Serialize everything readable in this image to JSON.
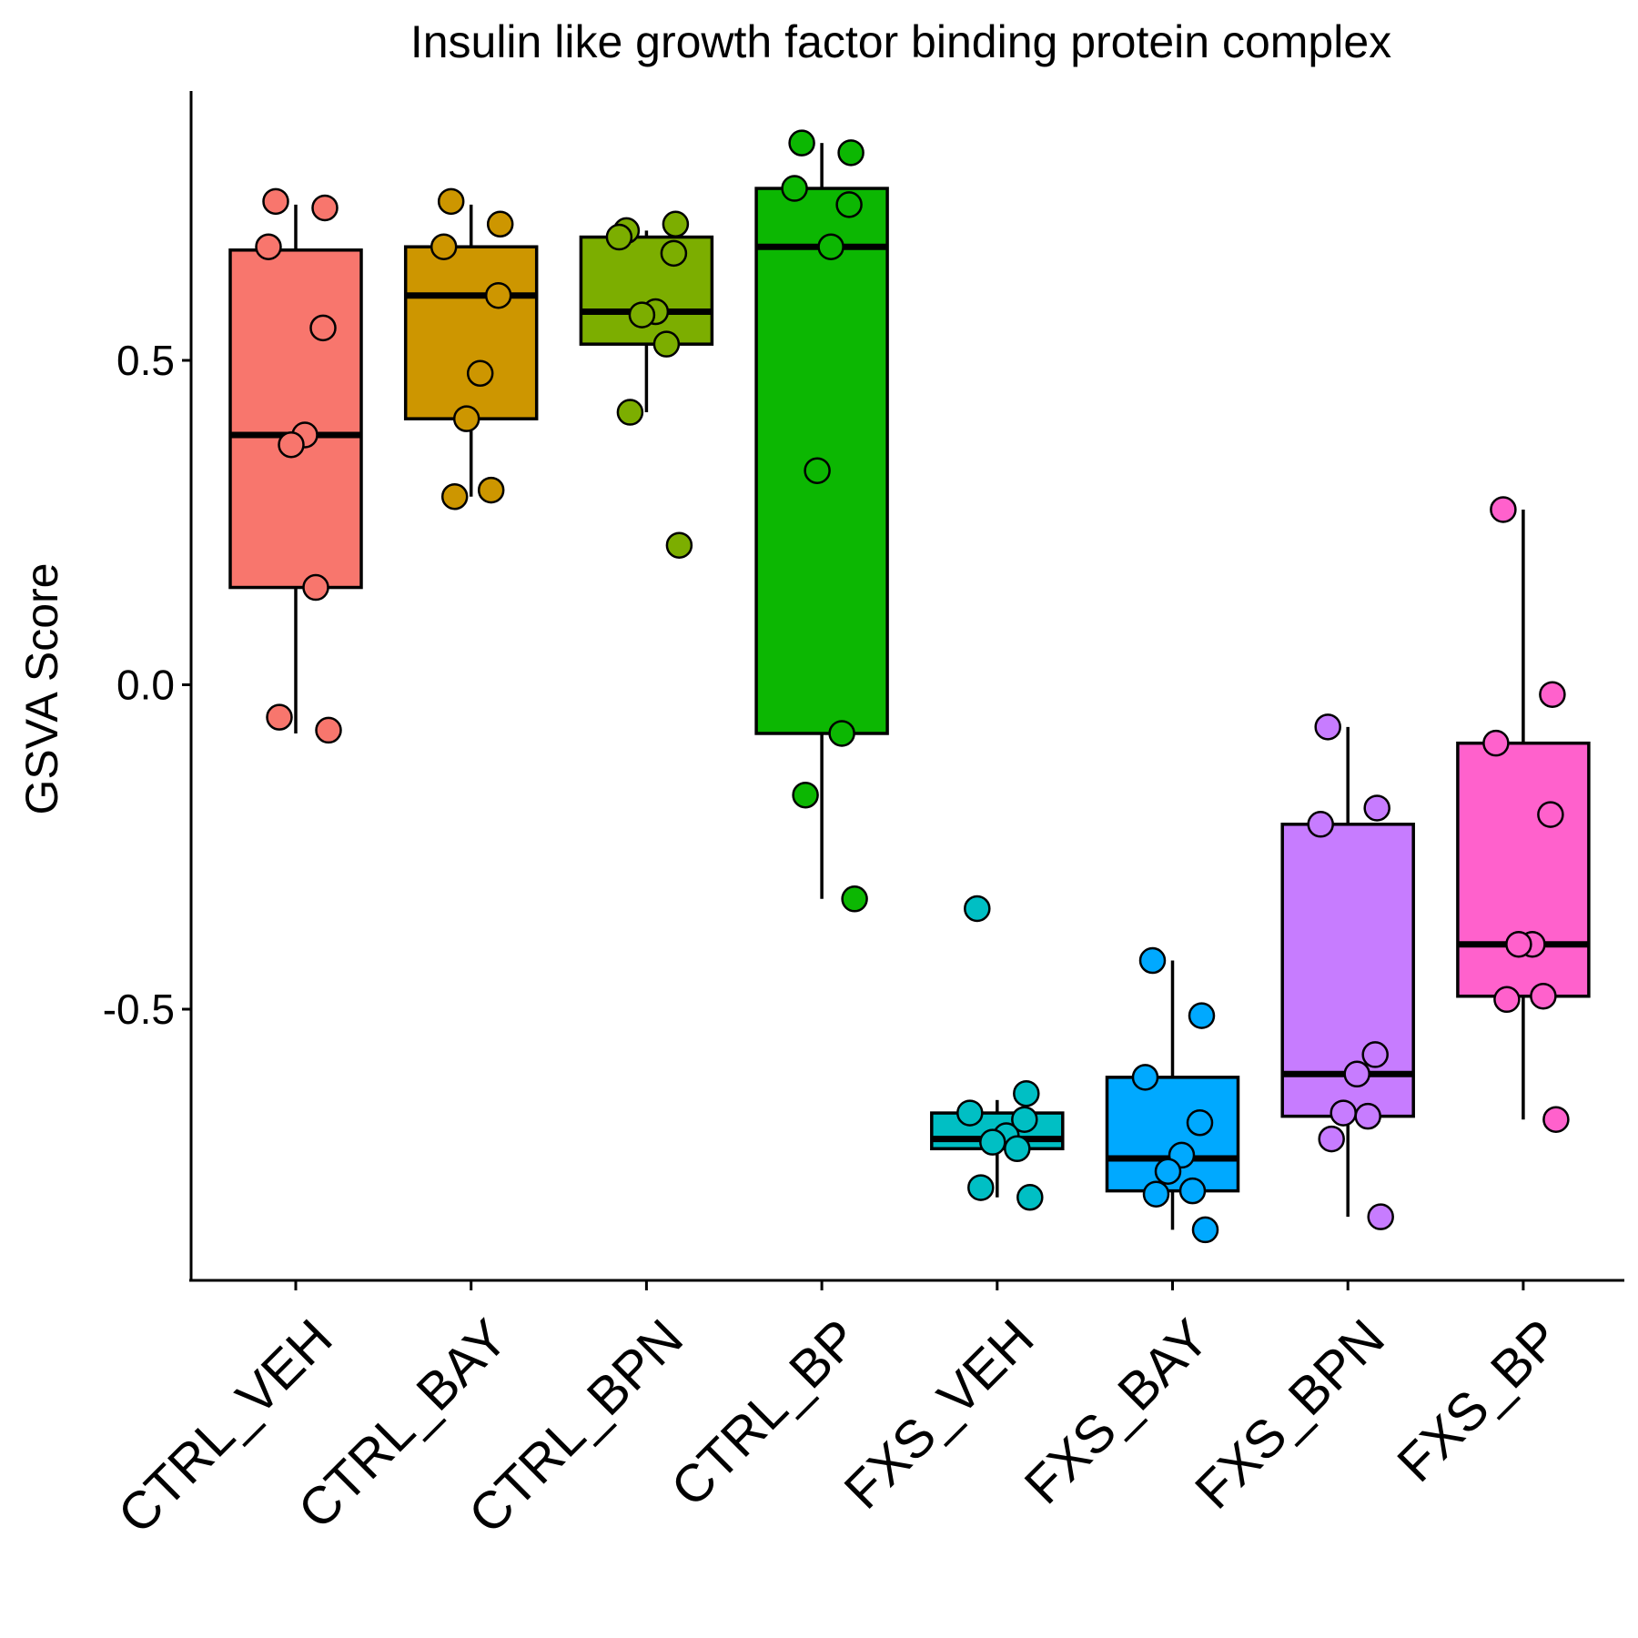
{
  "chart_data": {
    "type": "box",
    "title": "Insulin like growth factor binding protein complex",
    "xlabel": "",
    "ylabel": "GSVA Score",
    "ylim": [
      -0.9,
      0.92
    ],
    "yticks": [
      0.5,
      0.0,
      -0.5
    ],
    "ytick_labels": [
      "0.5",
      "0.0",
      "-0.5"
    ],
    "grid": false,
    "legend": "none",
    "groups": [
      {
        "name": "CTRL_VEH",
        "color": "#F8766D",
        "q1": 0.15,
        "median": 0.385,
        "q3": 0.67,
        "whisker_low": -0.075,
        "whisker_high": 0.74,
        "points": [
          0.745,
          0.735,
          0.675,
          0.55,
          0.385,
          0.37,
          0.15,
          -0.05,
          -0.07
        ]
      },
      {
        "name": "CTRL_BAY",
        "color": "#CD9600",
        "q1": 0.41,
        "median": 0.6,
        "q3": 0.675,
        "whisker_low": 0.29,
        "whisker_high": 0.74,
        "points": [
          0.745,
          0.71,
          0.675,
          0.6,
          0.48,
          0.41,
          0.3,
          0.29
        ]
      },
      {
        "name": "CTRL_BPN",
        "color": "#7CAE00",
        "q1": 0.525,
        "median": 0.575,
        "q3": 0.69,
        "whisker_low": 0.42,
        "whisker_high": 0.7,
        "points": [
          0.7,
          0.71,
          0.69,
          0.665,
          0.575,
          0.57,
          0.525,
          0.42,
          0.215
        ]
      },
      {
        "name": "CTRL_BP",
        "color": "#0CB702",
        "q1": -0.075,
        "median": 0.675,
        "q3": 0.765,
        "whisker_low": -0.33,
        "whisker_high": 0.835,
        "points": [
          0.835,
          0.82,
          0.765,
          0.74,
          0.675,
          0.33,
          -0.075,
          -0.17,
          -0.33
        ]
      },
      {
        "name": "FXS_VEH",
        "color": "#00BFC4",
        "q1": -0.715,
        "median": -0.7,
        "q3": -0.66,
        "whisker_low": -0.79,
        "whisker_high": -0.64,
        "points": [
          -0.345,
          -0.63,
          -0.66,
          -0.67,
          -0.695,
          -0.705,
          -0.715,
          -0.775,
          -0.79
        ]
      },
      {
        "name": "FXS_BAY",
        "color": "#00A9FF",
        "q1": -0.78,
        "median": -0.73,
        "q3": -0.605,
        "whisker_low": -0.84,
        "whisker_high": -0.425,
        "points": [
          -0.425,
          -0.51,
          -0.605,
          -0.675,
          -0.725,
          -0.75,
          -0.78,
          -0.785,
          -0.84
        ]
      },
      {
        "name": "FXS_BPN",
        "color": "#C77CFF",
        "q1": -0.665,
        "median": -0.6,
        "q3": -0.215,
        "whisker_low": -0.82,
        "whisker_high": -0.065,
        "points": [
          -0.065,
          -0.19,
          -0.215,
          -0.57,
          -0.6,
          -0.66,
          -0.665,
          -0.7,
          -0.82
        ]
      },
      {
        "name": "FXS_BP",
        "color": "#FF61CC",
        "q1": -0.48,
        "median": -0.4,
        "q3": -0.09,
        "whisker_low": -0.67,
        "whisker_high": 0.27,
        "points": [
          0.27,
          -0.015,
          -0.09,
          -0.2,
          -0.4,
          -0.4,
          -0.48,
          -0.485,
          -0.67
        ]
      }
    ]
  }
}
